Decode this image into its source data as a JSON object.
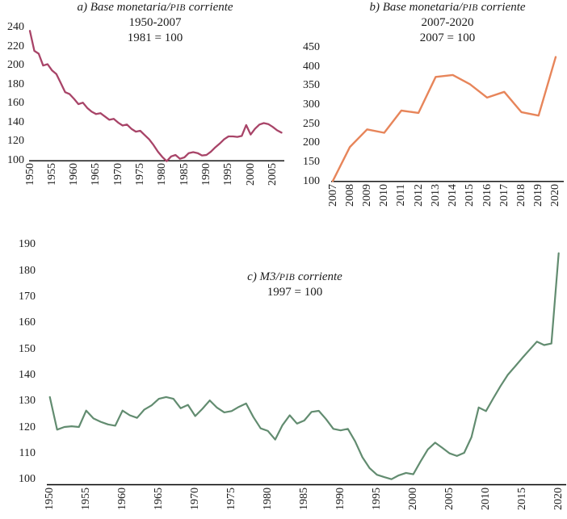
{
  "figure": {
    "background_color": "#ffffff",
    "text_color": "#1c1c1c",
    "axis_color": "#000000"
  },
  "chart_data": [
    {
      "id": "a",
      "type": "line",
      "title_parts": {
        "pre": "a) Base monetaria/",
        "smallcaps": "PIB",
        "post": " corriente"
      },
      "subtitles": [
        "1950-2007",
        "1981 = 100"
      ],
      "color": "#a84468",
      "x_start": 1950,
      "x_step": 1,
      "ylim": [
        100,
        240
      ],
      "yticks": [
        240,
        220,
        200,
        180,
        160,
        140,
        120,
        100
      ],
      "xticks": [
        1950,
        1955,
        1960,
        1965,
        1970,
        1975,
        1980,
        1985,
        1990,
        1995,
        2000,
        2005
      ],
      "grid": false,
      "legend": null,
      "values": [
        236,
        215,
        212,
        199.5,
        201,
        194.5,
        190.5,
        181,
        171.5,
        169.5,
        164.5,
        159,
        160.5,
        155,
        151,
        148.5,
        149.5,
        146,
        142.5,
        143.5,
        139.5,
        136.5,
        137.5,
        133,
        130,
        131,
        126.5,
        122,
        116,
        109,
        103.5,
        99,
        104,
        105.5,
        101.5,
        103,
        107.5,
        108.5,
        107.5,
        105,
        105.5,
        109,
        113.5,
        117.5,
        122,
        125,
        125,
        124.5,
        125.5,
        137,
        127,
        133,
        137.5,
        139,
        138,
        135,
        131.5,
        129
      ]
    },
    {
      "id": "b",
      "type": "line",
      "title_parts": {
        "pre": "b) Base monetaria/",
        "smallcaps": "PIB",
        "post": " corriente"
      },
      "subtitles": [
        "2007-2020",
        "2007 = 100"
      ],
      "color": "#e7855a",
      "x_start": 2007,
      "x_step": 1,
      "ylim": [
        100,
        450
      ],
      "yticks": [
        450,
        400,
        350,
        300,
        250,
        200,
        150,
        100
      ],
      "xticks": [
        2007,
        2008,
        2009,
        2010,
        2011,
        2012,
        2013,
        2014,
        2015,
        2016,
        2017,
        2018,
        2019,
        2020
      ],
      "grid": false,
      "legend": null,
      "values": [
        100,
        189,
        235,
        226,
        284,
        278,
        372,
        377,
        353,
        318,
        333,
        280,
        271,
        424
      ]
    },
    {
      "id": "c",
      "type": "line",
      "title_parts": {
        "pre": "c) M3/",
        "smallcaps": "PIB",
        "post": " corriente"
      },
      "subtitles": [
        "1997 = 100"
      ],
      "color": "#628c70",
      "x_start": 1950,
      "x_step": 1,
      "ylim": [
        100,
        190
      ],
      "yticks": [
        190,
        180,
        170,
        160,
        150,
        140,
        130,
        120,
        110,
        100
      ],
      "xticks": [
        1950,
        1955,
        1960,
        1965,
        1970,
        1975,
        1980,
        1985,
        1990,
        1995,
        2000,
        2005,
        2010,
        2015,
        2020
      ],
      "grid": false,
      "legend": null,
      "values": [
        131.5,
        119,
        120,
        120.3,
        120,
        126.3,
        123.3,
        122,
        121,
        120.5,
        126.3,
        124.5,
        123.5,
        126.7,
        128.3,
        130.8,
        131.5,
        130.8,
        127.2,
        128.5,
        124.2,
        127,
        130.2,
        127.4,
        125.6,
        126.1,
        127.7,
        129,
        123.8,
        119.5,
        118.5,
        115.2,
        120.7,
        124.5,
        121.3,
        122.5,
        125.8,
        126.2,
        123,
        119.3,
        118.7,
        119.3,
        114.5,
        108.4,
        104.2,
        101.7,
        100.8,
        100,
        101.5,
        102.4,
        101.9,
        106.8,
        111.4,
        114,
        112,
        109.9,
        108.9,
        110.1,
        116.1,
        127.5,
        126.1,
        131,
        135.7,
        140,
        143.2,
        146.5,
        149.6,
        152.7,
        151.4,
        152,
        186.6
      ]
    }
  ]
}
